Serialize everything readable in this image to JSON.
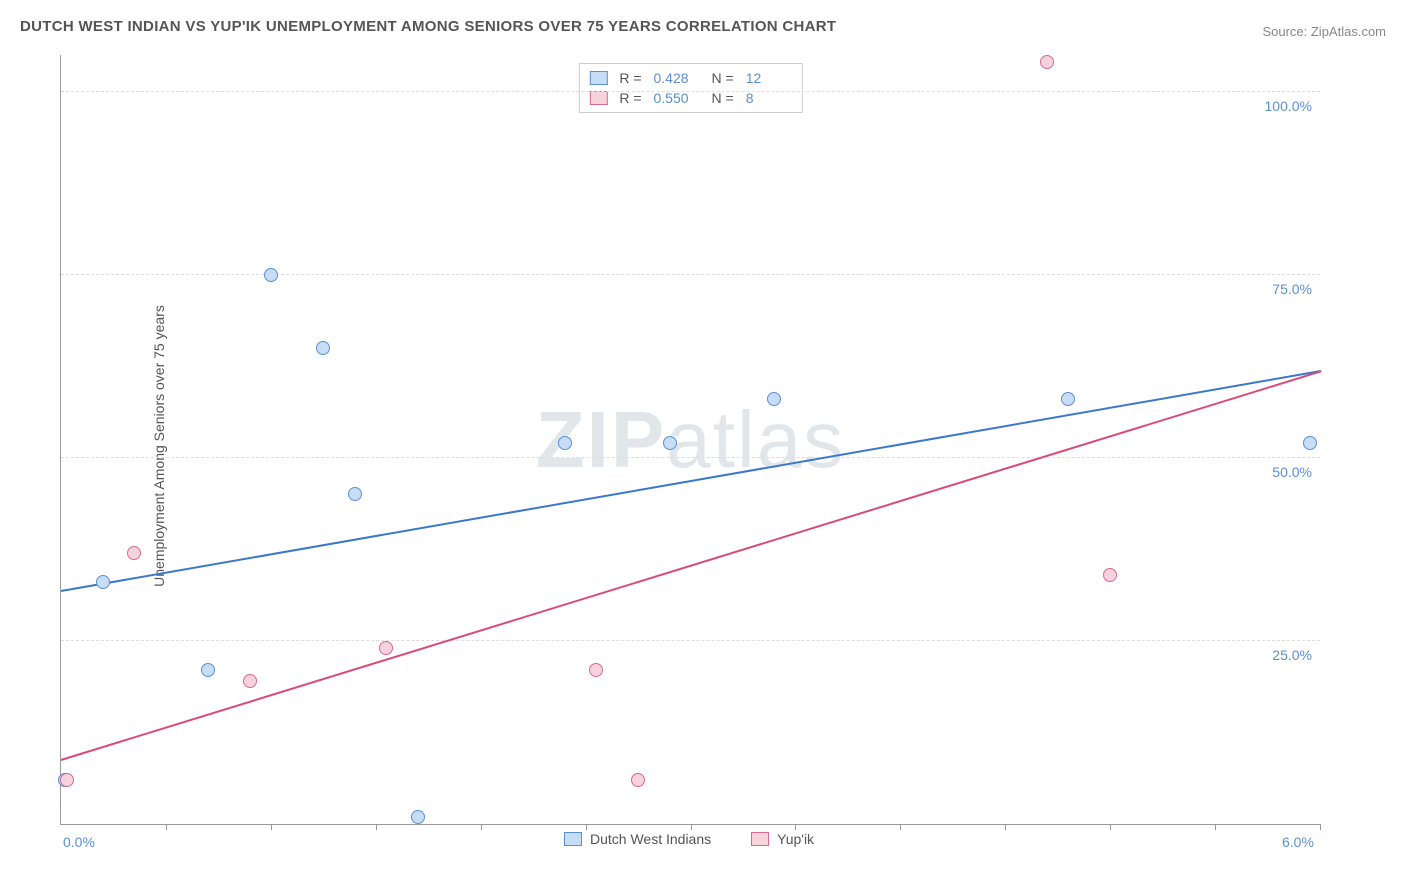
{
  "title": "DUTCH WEST INDIAN VS YUP'IK UNEMPLOYMENT AMONG SENIORS OVER 75 YEARS CORRELATION CHART",
  "source": "Source: ZipAtlas.com",
  "ylabel": "Unemployment Among Seniors over 75 years",
  "watermark_bold": "ZIP",
  "watermark_light": "atlas",
  "chart": {
    "type": "scatter",
    "background_color": "#ffffff",
    "grid_color": "#dddddd",
    "xlim": [
      0.0,
      6.0
    ],
    "ylim": [
      0.0,
      105.0
    ],
    "xtick_positions": [
      0.5,
      1.0,
      1.5,
      2.0,
      2.5,
      3.0,
      3.5,
      4.0,
      4.5,
      5.0,
      5.5,
      6.0
    ],
    "xtick_labels": {
      "0.0": "0.0%",
      "6.0": "6.0%"
    },
    "ytick_positions": [
      25.0,
      50.0,
      75.0,
      100.0
    ],
    "ytick_labels": [
      "25.0%",
      "50.0%",
      "75.0%",
      "100.0%"
    ],
    "marker_radius": 7,
    "marker_border_width": 1.2,
    "regline_width": 2.2,
    "series": [
      {
        "name": "Dutch West Indians",
        "marker_fill": "#c6ddf5",
        "marker_stroke": "#5b8fd6",
        "line_color": "#3b78c9",
        "R": "0.428",
        "N": "12",
        "regression": {
          "x1": 0.0,
          "y1": 32.0,
          "x2": 6.0,
          "y2": 62.0
        },
        "points": [
          {
            "x": 0.02,
            "y": 6.0
          },
          {
            "x": 0.2,
            "y": 33.0
          },
          {
            "x": 0.7,
            "y": 21.0
          },
          {
            "x": 1.0,
            "y": 75.0
          },
          {
            "x": 1.25,
            "y": 65.0
          },
          {
            "x": 1.4,
            "y": 45.0
          },
          {
            "x": 1.7,
            "y": 1.0
          },
          {
            "x": 2.4,
            "y": 52.0
          },
          {
            "x": 2.9,
            "y": 52.0
          },
          {
            "x": 3.4,
            "y": 58.0
          },
          {
            "x": 4.8,
            "y": 58.0
          },
          {
            "x": 5.95,
            "y": 52.0
          }
        ]
      },
      {
        "name": "Yup'ik",
        "marker_fill": "#f6d2dd",
        "marker_stroke": "#d76a8f",
        "line_color": "#d94b77",
        "R": "0.550",
        "N": "8",
        "regression": {
          "x1": 0.0,
          "y1": 9.0,
          "x2": 6.0,
          "y2": 62.0
        },
        "points": [
          {
            "x": 0.03,
            "y": 6.0
          },
          {
            "x": 0.35,
            "y": 37.0
          },
          {
            "x": 0.9,
            "y": 19.5
          },
          {
            "x": 1.55,
            "y": 24.0
          },
          {
            "x": 2.55,
            "y": 21.0
          },
          {
            "x": 2.75,
            "y": 6.0
          },
          {
            "x": 4.7,
            "y": 104.0
          },
          {
            "x": 5.0,
            "y": 34.0
          }
        ]
      }
    ]
  },
  "legend_bottom": [
    {
      "label": "Dutch West Indians",
      "fill": "#c6ddf5",
      "stroke": "#5b8fd6"
    },
    {
      "label": "Yup'ik",
      "fill": "#f6d2dd",
      "stroke": "#d76a8f"
    }
  ],
  "legend_top_labels": {
    "R": "R =",
    "N": "N ="
  }
}
